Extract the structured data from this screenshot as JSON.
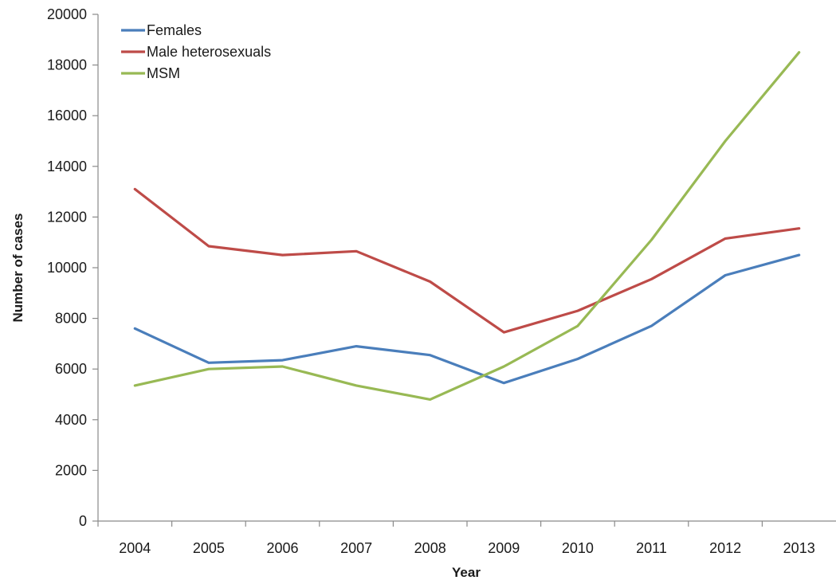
{
  "chart_data": {
    "type": "line",
    "title": "",
    "xlabel": "Year",
    "ylabel": "Number of cases",
    "categories": [
      "2004",
      "2005",
      "2006",
      "2007",
      "2008",
      "2009",
      "2010",
      "2011",
      "2012",
      "2013"
    ],
    "ylim": [
      0,
      20000
    ],
    "yticks": [
      0,
      2000,
      4000,
      6000,
      8000,
      10000,
      12000,
      14000,
      16000,
      18000,
      20000
    ],
    "grid": false,
    "legend_position": "top-left",
    "series": [
      {
        "name": "Females",
        "color": "#4a7ebb",
        "values": [
          7600,
          6250,
          6350,
          6900,
          6550,
          5450,
          6400,
          7700,
          9700,
          10500
        ]
      },
      {
        "name": "Male heterosexuals",
        "color": "#be4b48",
        "values": [
          13100,
          10850,
          10500,
          10650,
          9450,
          7450,
          8300,
          9550,
          11150,
          11550
        ]
      },
      {
        "name": "MSM",
        "color": "#98b954",
        "values": [
          5350,
          6000,
          6100,
          5350,
          4800,
          6100,
          7700,
          11100,
          15000,
          18500
        ]
      }
    ]
  }
}
